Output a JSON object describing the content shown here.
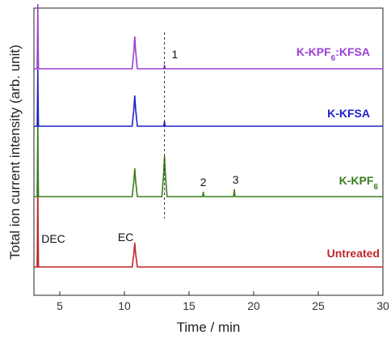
{
  "chart_data": {
    "type": "line",
    "xlabel": "Time / min",
    "ylabel": "Total ion current intensity (arb. unit)",
    "xlim": [
      3,
      30
    ],
    "x_ticks": [
      5,
      10,
      15,
      20,
      25,
      30
    ],
    "y_ticks_shown": false,
    "grid": false,
    "series": [
      {
        "name": "Untreated",
        "color": "#c0272d",
        "offset": 0,
        "peaks": [
          {
            "x": 3.3,
            "height": 110
          },
          {
            "x": 10.8,
            "height": 30
          }
        ]
      },
      {
        "name": "K-KPF6",
        "label_main": "K-KPF",
        "label_sub": "6",
        "label_tail": "",
        "color": "#3a7d1e",
        "offset": 87,
        "peaks": [
          {
            "x": 3.3,
            "height": 95
          },
          {
            "x": 10.8,
            "height": 35
          },
          {
            "x": 13.1,
            "height": 50
          },
          {
            "x": 16.1,
            "height": 6
          },
          {
            "x": 18.5,
            "height": 9
          }
        ]
      },
      {
        "name": "K-KFSA",
        "color": "#1f22c8",
        "offset": 174,
        "peaks": [
          {
            "x": 3.3,
            "height": 70
          },
          {
            "x": 10.8,
            "height": 38
          },
          {
            "x": 13.1,
            "height": 6
          }
        ]
      },
      {
        "name": "K-KPF6:KFSA",
        "label_main": "K-KPF",
        "label_sub": "6",
        "label_tail": ":KFSA",
        "color": "#9b3fd6",
        "offset": 245,
        "peaks": [
          {
            "x": 3.3,
            "height": 80
          },
          {
            "x": 10.8,
            "height": 40
          },
          {
            "x": 13.1,
            "height": 5
          }
        ]
      }
    ],
    "annotations": [
      {
        "text": "DEC",
        "x": 4.5,
        "series": "Untreated",
        "dy": 30
      },
      {
        "text": "EC",
        "x": 10.1,
        "series": "Untreated",
        "dy": 32
      },
      {
        "text": "1",
        "x": 13.9,
        "series": "K-KPF6:KFSA",
        "dy": 13
      },
      {
        "text": "2",
        "x": 16.1,
        "series": "K-KPF6",
        "dy": 13
      },
      {
        "text": "3",
        "x": 18.6,
        "series": "K-KPF6",
        "dy": 16
      }
    ],
    "reference_line": {
      "x": 13.1,
      "style": "dashed"
    }
  }
}
